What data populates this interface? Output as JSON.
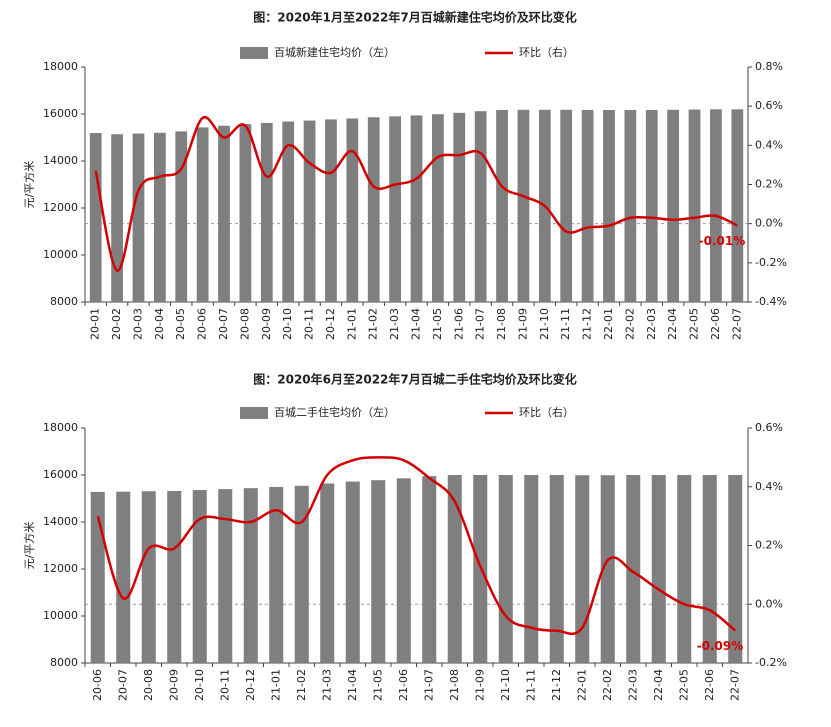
{
  "chart_data": [
    {
      "type": "bar",
      "title": "图：2020年1月至2022年7月百城新建住宅均价及环比变化",
      "ylabel": "元/平方米",
      "categories": [
        "20-01",
        "20-02",
        "20-03",
        "20-04",
        "20-05",
        "20-06",
        "20-07",
        "20-08",
        "20-09",
        "20-10",
        "20-11",
        "20-12",
        "21-01",
        "21-02",
        "21-03",
        "21-04",
        "21-05",
        "21-06",
        "21-07",
        "21-08",
        "21-09",
        "21-10",
        "21-11",
        "21-12",
        "22-01",
        "22-02",
        "22-03",
        "22-04",
        "22-05",
        "22-06",
        "22-07"
      ],
      "series": [
        {
          "name": "百城新建住宅均价（左）",
          "type": "bar",
          "color": "#7f7f7f",
          "values": [
            15190,
            15140,
            15170,
            15200,
            15260,
            15430,
            15500,
            15570,
            15620,
            15680,
            15720,
            15770,
            15810,
            15860,
            15900,
            15940,
            15990,
            16050,
            16120,
            16170,
            16180,
            16180,
            16180,
            16170,
            16170,
            16170,
            16170,
            16180,
            16190,
            16200,
            16200
          ]
        },
        {
          "name": "环比（右）",
          "type": "line",
          "axis": "y2",
          "color": "#d40000",
          "values": [
            0.27,
            -0.24,
            0.17,
            0.24,
            0.28,
            0.54,
            0.44,
            0.5,
            0.24,
            0.4,
            0.31,
            0.26,
            0.37,
            0.19,
            0.2,
            0.23,
            0.34,
            0.35,
            0.36,
            0.19,
            0.14,
            0.09,
            -0.04,
            -0.02,
            -0.01,
            0.03,
            0.03,
            0.02,
            0.03,
            0.04,
            -0.01
          ],
          "value_labels": [
            null,
            null,
            null,
            null,
            null,
            null,
            null,
            null,
            null,
            null,
            null,
            null,
            null,
            null,
            null,
            null,
            null,
            null,
            null,
            null,
            null,
            null,
            null,
            null,
            null,
            null,
            null,
            null,
            null,
            null,
            "-0.01%"
          ]
        }
      ],
      "ylim": [
        8000,
        18000
      ],
      "yticks": [
        8000,
        10000,
        12000,
        14000,
        16000,
        18000
      ],
      "y2lim": [
        -0.4,
        0.8
      ],
      "y2ticks": [
        {
          "value": -0.4,
          "label": "-0.4%"
        },
        {
          "value": -0.2,
          "label": "-0.2%"
        },
        {
          "value": 0,
          "label": "0.0%"
        },
        {
          "value": 0.2,
          "label": "0.2%"
        },
        {
          "value": 0.4,
          "label": "0.4%"
        },
        {
          "value": 0.6,
          "label": "0.6%"
        },
        {
          "value": 0.8,
          "label": "0.8%"
        }
      ],
      "y2_reference_line": 0
    },
    {
      "type": "bar",
      "title": "图：2020年6月至2022年7月百城二手住宅均价及环比变化",
      "ylabel": "元/平方米",
      "categories": [
        "20-06",
        "20-07",
        "20-08",
        "20-09",
        "20-10",
        "20-11",
        "20-12",
        "21-01",
        "21-02",
        "21-03",
        "21-04",
        "21-05",
        "21-06",
        "21-07",
        "21-08",
        "21-09",
        "21-10",
        "21-11",
        "21-12",
        "22-01",
        "22-02",
        "22-03",
        "22-04",
        "22-05",
        "22-06",
        "22-07"
      ],
      "series": [
        {
          "name": "百城二手住宅均价（左）",
          "type": "bar",
          "color": "#7f7f7f",
          "values": [
            15280,
            15290,
            15310,
            15320,
            15360,
            15400,
            15440,
            15490,
            15540,
            15640,
            15720,
            15780,
            15860,
            15950,
            16000,
            16000,
            16000,
            16000,
            16000,
            15990,
            15990,
            16000,
            16000,
            16000,
            16000,
            16000
          ]
        },
        {
          "name": "环比（右）",
          "type": "line",
          "axis": "y2",
          "color": "#d40000",
          "values": [
            0.3,
            0.02,
            0.19,
            0.19,
            0.29,
            0.29,
            0.28,
            0.32,
            0.28,
            0.44,
            0.49,
            0.5,
            0.49,
            0.43,
            0.35,
            0.13,
            -0.04,
            -0.08,
            -0.09,
            -0.08,
            0.15,
            0.11,
            0.05,
            0.0,
            -0.02,
            -0.09
          ],
          "value_labels": [
            null,
            null,
            null,
            null,
            null,
            null,
            null,
            null,
            null,
            null,
            null,
            null,
            null,
            null,
            null,
            null,
            null,
            null,
            null,
            null,
            null,
            null,
            null,
            null,
            null,
            "-0.09%"
          ]
        }
      ],
      "ylim": [
        8000,
        18000
      ],
      "yticks": [
        8000,
        10000,
        12000,
        14000,
        16000,
        18000
      ],
      "y2lim": [
        -0.2,
        0.6
      ],
      "y2ticks": [
        {
          "value": -0.2,
          "label": "-0.2%"
        },
        {
          "value": 0,
          "label": "0.0%"
        },
        {
          "value": 0.2,
          "label": "0.2%"
        },
        {
          "value": 0.4,
          "label": "0.4%"
        },
        {
          "value": 0.6,
          "label": "0.6%"
        }
      ],
      "y2_reference_line": 0
    }
  ]
}
